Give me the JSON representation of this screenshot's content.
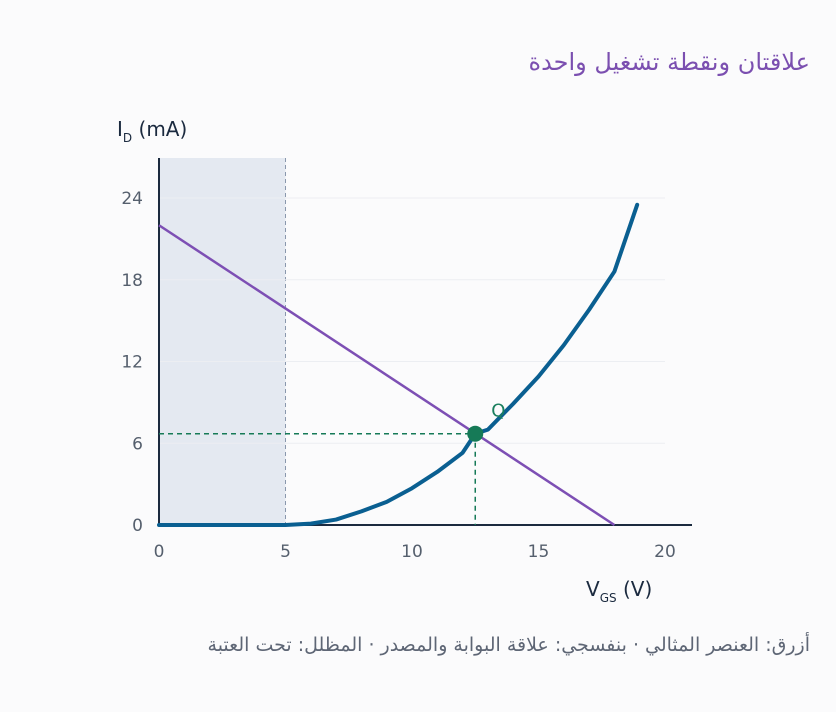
{
  "title": "علاقتان ونقطة تشغيل واحدة",
  "caption": "أزرق: العنصر المثالي · بنفسجي: علاقة البوابة والمصدر · المظلل: تحت العتبة",
  "colors": {
    "device_curve": "#0a5f91",
    "load_line": "#7d4fb4",
    "q_point": "#167a57",
    "shade": "#e4e9f1",
    "axis": "#1b2a3f",
    "grid": "#eceef2",
    "title": "#7b4fb0"
  },
  "chart_data": {
    "type": "line",
    "ylabel_main": "I",
    "ylabel_sub": "D",
    "ylabel_unit": " (mA)",
    "xlabel_main": "V",
    "xlabel_sub": "GS",
    "xlabel_unit": " (V)",
    "xlim": [
      0,
      21
    ],
    "ylim": [
      0,
      24
    ],
    "x_ticks": [
      0,
      5,
      10,
      15,
      20
    ],
    "y_ticks": [
      0,
      6,
      12,
      18,
      24
    ],
    "grid": true,
    "threshold_region": [
      0,
      5
    ],
    "series": [
      {
        "role": "device",
        "x": [
          0,
          5,
          6,
          7,
          8,
          9,
          10,
          11,
          12,
          12.5,
          13,
          14,
          15,
          16,
          17,
          18,
          18.9
        ],
        "y": [
          0,
          0,
          0.1,
          0.4,
          1.0,
          1.7,
          2.7,
          3.9,
          5.3,
          6.7,
          7.0,
          8.9,
          10.9,
          13.2,
          15.8,
          18.6,
          23.5
        ]
      },
      {
        "role": "load",
        "x": [
          0,
          18
        ],
        "y": [
          22,
          0
        ]
      }
    ],
    "q_point": {
      "label": "Q",
      "x": 12.5,
      "y": 6.7
    }
  }
}
